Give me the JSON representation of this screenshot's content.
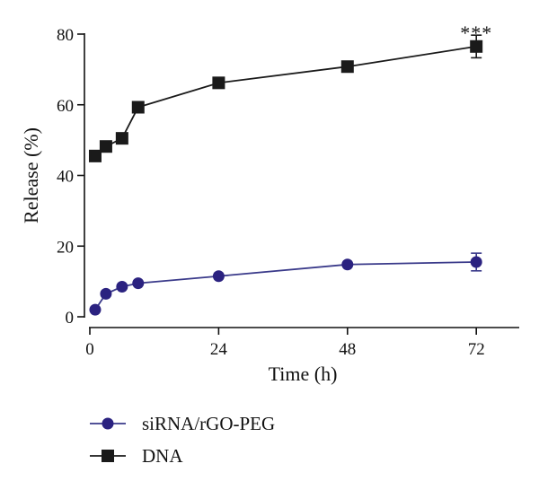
{
  "chart_data": {
    "type": "line",
    "title": "",
    "xlabel": "Time (h)",
    "ylabel": "Release (%)",
    "xlim": [
      0,
      80
    ],
    "ylim": [
      0,
      80
    ],
    "x_ticks": [
      0,
      24,
      48,
      72
    ],
    "y_ticks": [
      0,
      20,
      40,
      60,
      80
    ],
    "grid": false,
    "legend_position": "bottom",
    "series": [
      {
        "name": "siRNA/rGO-PEG",
        "marker": "circle",
        "color": "#2b2280",
        "line_color": "#3a3a8a",
        "x": [
          1,
          3,
          6,
          9,
          24,
          48,
          72
        ],
        "y": [
          2,
          6.5,
          8.5,
          9.5,
          11.5,
          14.8,
          15.5
        ],
        "error": [
          0,
          0,
          0,
          0,
          0,
          0,
          2.5
        ]
      },
      {
        "name": "DNA",
        "marker": "square",
        "color": "#1a1a1a",
        "line_color": "#1a1a1a",
        "x": [
          1,
          3,
          6,
          9,
          24,
          48,
          72
        ],
        "y": [
          45.5,
          48.2,
          50.5,
          59.3,
          66.2,
          70.8,
          76.5
        ],
        "error": [
          0,
          0,
          0,
          0,
          0,
          0,
          3.2
        ]
      }
    ],
    "annotations": [
      {
        "text": "***",
        "x": 72,
        "y": 81
      }
    ]
  }
}
